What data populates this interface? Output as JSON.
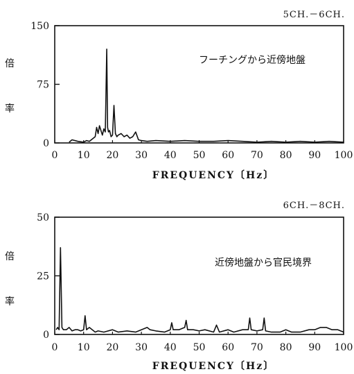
{
  "chart_data": [
    {
      "type": "line",
      "title": "5CH.－6CH.",
      "annotation": "フーチングから近傍地盤",
      "ylabel": [
        "倍",
        "率"
      ],
      "xlabel": "FREQUENCY〔Hz〕",
      "xlim": [
        0,
        100
      ],
      "ylim": [
        0,
        150
      ],
      "xticks": [
        "0",
        "10",
        "20",
        "30",
        "40",
        "50",
        "60",
        "70",
        "80",
        "90",
        "100"
      ],
      "yticks": [
        "0",
        "75",
        "150"
      ],
      "series": [
        {
          "x": [
            5,
            6,
            8,
            10,
            11,
            12,
            13,
            14,
            14.5,
            15,
            15.5,
            16,
            16.5,
            17,
            17.5,
            18,
            18.3,
            18.6,
            19,
            19.5,
            20,
            20.5,
            21,
            21.5,
            22,
            23,
            24,
            25,
            26,
            27,
            28,
            29,
            30,
            32,
            35,
            40,
            45,
            50,
            55,
            60,
            65,
            70,
            75,
            80,
            85,
            90,
            95,
            100
          ],
          "y": [
            1,
            4,
            2,
            1,
            3,
            2,
            5,
            8,
            20,
            12,
            22,
            16,
            10,
            18,
            14,
            120,
            20,
            14,
            16,
            8,
            10,
            48,
            12,
            8,
            10,
            12,
            8,
            10,
            6,
            8,
            14,
            4,
            3,
            2,
            3,
            2,
            3,
            2,
            2,
            3,
            2,
            1,
            2,
            1,
            2,
            1,
            2,
            1
          ]
        }
      ]
    },
    {
      "type": "line",
      "title": "6CH.－8CH.",
      "annotation": "近傍地盤から官民境界",
      "ylabel": [
        "倍",
        "率"
      ],
      "xlabel": "FREQUENCY〔Hz〕",
      "xlim": [
        0,
        100
      ],
      "ylim": [
        0,
        50
      ],
      "xticks": [
        "0",
        "10",
        "20",
        "30",
        "40",
        "50",
        "60",
        "70",
        "80",
        "90",
        "100"
      ],
      "yticks": [
        "0",
        "25",
        "50"
      ],
      "series": [
        {
          "x": [
            0.5,
            1,
            1.5,
            2,
            2.5,
            3,
            4,
            5,
            6,
            7,
            8,
            9,
            10,
            10.5,
            11,
            12,
            13,
            14,
            15,
            17,
            20,
            22,
            25,
            28,
            30,
            32,
            33,
            35,
            38,
            40,
            40.5,
            41,
            43,
            45,
            45.5,
            46,
            48,
            50,
            52,
            55,
            56,
            57,
            60,
            62,
            65,
            67,
            67.5,
            68,
            70,
            72,
            72.5,
            73,
            75,
            78,
            80,
            82,
            85,
            88,
            90,
            92,
            94,
            96,
            98,
            100
          ],
          "y": [
            2,
            3,
            2,
            37,
            3,
            2,
            2,
            3,
            1.5,
            2,
            2,
            1.5,
            2,
            8,
            2,
            3,
            2,
            1,
            1.5,
            1,
            2,
            1,
            1.5,
            1,
            2,
            3,
            2,
            1.5,
            1,
            2,
            5,
            2,
            2,
            3,
            6,
            2,
            2,
            1.5,
            2,
            1,
            4,
            1,
            2,
            1,
            2,
            2,
            7,
            2,
            1.5,
            2,
            7,
            1.5,
            1,
            1,
            2,
            1,
            1,
            2,
            2,
            3,
            3,
            2,
            2,
            1
          ]
        }
      ]
    }
  ]
}
